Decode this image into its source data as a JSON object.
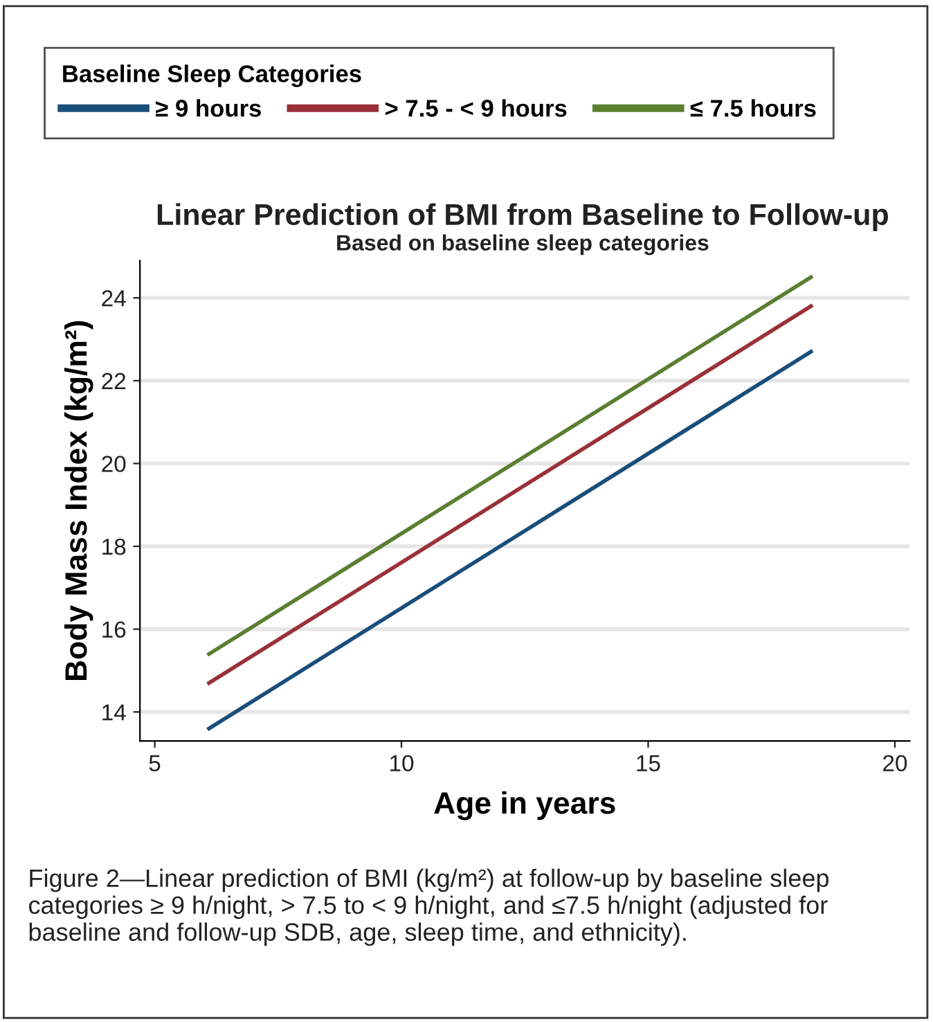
{
  "chart_data": {
    "type": "line",
    "title": "Linear Prediction of BMI from Baseline to Follow-up",
    "subtitle": "Based on baseline sleep categories",
    "xlabel": "Age in years",
    "ylabel": "Body Mass Index (kg/m²)",
    "legend_title": "Baseline Sleep Categories",
    "legend": "top",
    "grid": "y",
    "marker": "none",
    "line_style": "solid",
    "xlim": [
      4.7,
      20.3
    ],
    "x": [
      6.1,
      18.3
    ],
    "xticks": [
      5,
      10,
      15,
      20
    ],
    "ylim": [
      13.3,
      24.9
    ],
    "yticks": [
      14,
      16,
      18,
      20,
      22,
      24
    ],
    "series": [
      {
        "name": "≥ 9 hours",
        "color": "#1a4e7a",
        "values": [
          13.6,
          22.7
        ]
      },
      {
        "name": "> 7.5 - < 9 hours",
        "color": "#9b3039",
        "values": [
          14.7,
          23.8
        ]
      },
      {
        "name": "≤ 7.5 hours",
        "color": "#5a7f31",
        "values": [
          15.4,
          24.5
        ]
      }
    ],
    "annotations": [
      "Figure 2—Linear prediction of BMI (kg/m²) at follow-up by baseline sleep categories ≥ 9 h/night, > 7.5 to < 9 h/night, and ≤7.5 h/night (adjusted for baseline and follow-up SDB, age, sleep time, and ethnicity)."
    ]
  }
}
